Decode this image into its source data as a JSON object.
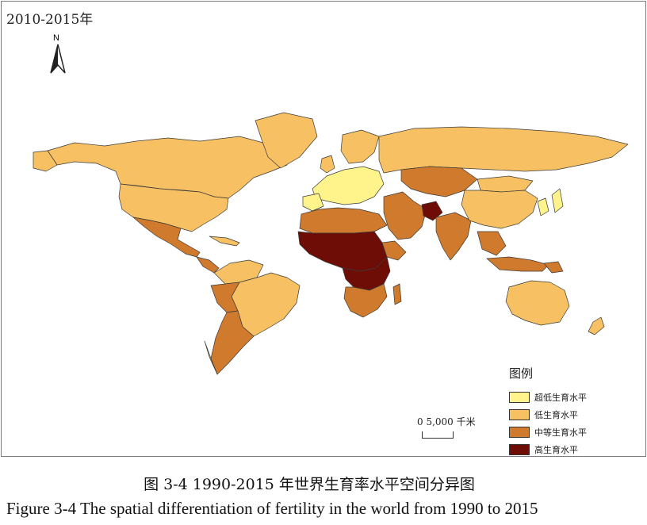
{
  "period_title": "2010-2015年",
  "north_label": "N",
  "legend": {
    "title": "图例",
    "items": [
      {
        "label": "超低生育水平",
        "color": "#fff38c"
      },
      {
        "label": "低生育水平",
        "color": "#f6c063"
      },
      {
        "label": "中等生育水平",
        "color": "#cf7a2c"
      },
      {
        "label": "高生育水平",
        "color": "#6e0c06"
      }
    ]
  },
  "scale": {
    "text": "0  5,000 千米"
  },
  "caption_cn": "图 3-4 1990-2015 年世界生育率水平空间分异图",
  "caption_en": "Figure 3-4 The spatial differentiation of fertility in the world from 1990 to 2015",
  "colors": {
    "ultra_low": "#fff38c",
    "low": "#f6c063",
    "medium": "#cf7a2c",
    "high": "#6e0c06",
    "border": "#3a3a3a"
  }
}
